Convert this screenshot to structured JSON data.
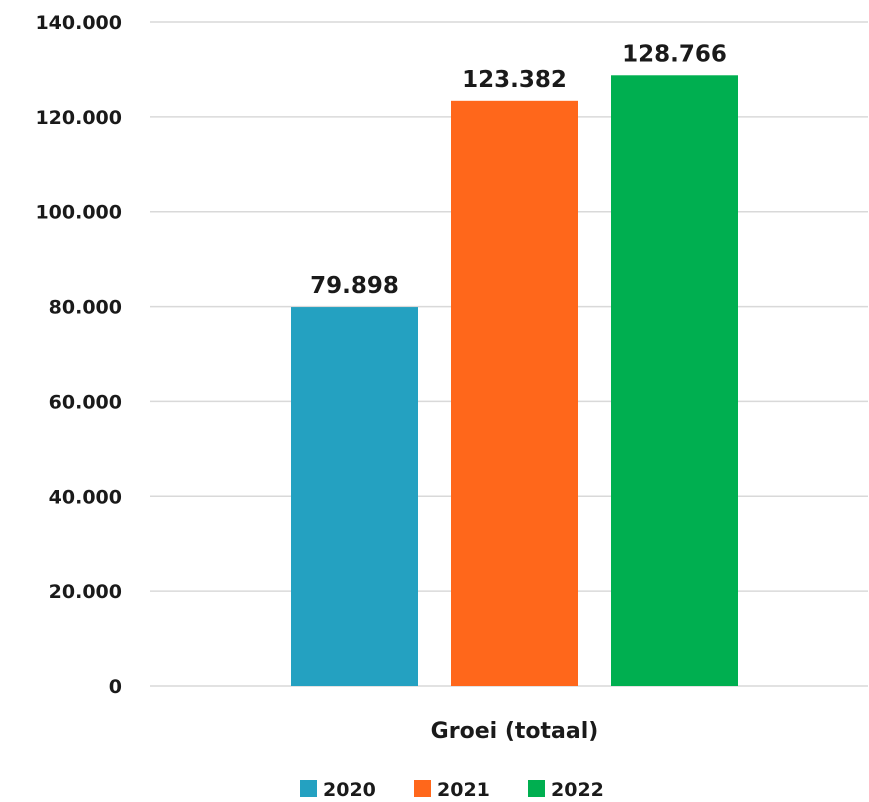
{
  "chart_data": {
    "type": "bar",
    "categories": [
      "Groei (totaal)"
    ],
    "series": [
      {
        "name": "2020",
        "values": [
          79898
        ],
        "label": "79.898",
        "color": "#24a1c1"
      },
      {
        "name": "2021",
        "values": [
          123382
        ],
        "label": "123.382",
        "color": "#ff671b"
      },
      {
        "name": "2022",
        "values": [
          128766
        ],
        "label": "128.766",
        "color": "#00af50"
      }
    ],
    "ylim": [
      0,
      140000
    ],
    "yticks": [
      {
        "value": 0,
        "label": "0"
      },
      {
        "value": 20000,
        "label": "20.000"
      },
      {
        "value": 40000,
        "label": "40.000"
      },
      {
        "value": 60000,
        "label": "60.000"
      },
      {
        "value": 80000,
        "label": "80.000"
      },
      {
        "value": 100000,
        "label": "100.000"
      },
      {
        "value": 120000,
        "label": "120.000"
      },
      {
        "value": 140000,
        "label": "140.000"
      }
    ],
    "grid": true,
    "gridline_color": "#d9d9d9",
    "legend_position": "bottom",
    "title": "",
    "xlabel": "",
    "ylabel": ""
  }
}
